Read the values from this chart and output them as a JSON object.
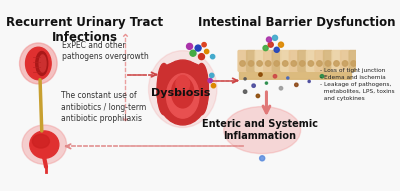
{
  "bg_color": "#f8f8f8",
  "title_left": "Recurrent Urinary Tract\nInfections",
  "title_right": "Intestinal Barrier Dysfunction",
  "label_expec": "ExPEC and other\npathogens overgrowth",
  "label_antibiotics": "The constant use of\nantibiotics / long-term\nantibiotic prophilaxis",
  "label_dysbiosis": "Dysbiosis",
  "label_inflammation": "Enteric and Systemic\nInflammation",
  "bullet_points": "- Loss of tight junction\n- Edema and ischemia\n- Leakage of pathogens,\n  metabolites, LPS, toxins\n  and cytokines",
  "kidney_color": "#e03030",
  "bladder_color": "#e03030",
  "gut_color": "#cc3333",
  "arrow_forward_color": "#cc4444",
  "arrow_back_color": "#e08888",
  "vertical_line_color": "#c8a030",
  "glow_kidney": "#f08080",
  "glow_bladder": "#f09090",
  "villi_color": "#e8c8a0",
  "villi_base_color": "#d4a870",
  "blue_arrow": "#2060cc",
  "dot_colors": [
    "#555555",
    "#444499",
    "#884400",
    "#228844",
    "#cc4444",
    "#999999",
    "#4466bb",
    "#8b4513"
  ],
  "microbe_colors": [
    "#44aa44",
    "#cc3322",
    "#2244bb",
    "#aa33aa",
    "#dd8800",
    "#44aacc",
    "#dd4422"
  ],
  "vdash_color": "#e89090",
  "title_fontsize": 8.5,
  "label_fontsize": 5.5,
  "dysbiosis_fontsize": 8.0,
  "infl_fontsize": 7.0,
  "bullet_fontsize": 4.2
}
